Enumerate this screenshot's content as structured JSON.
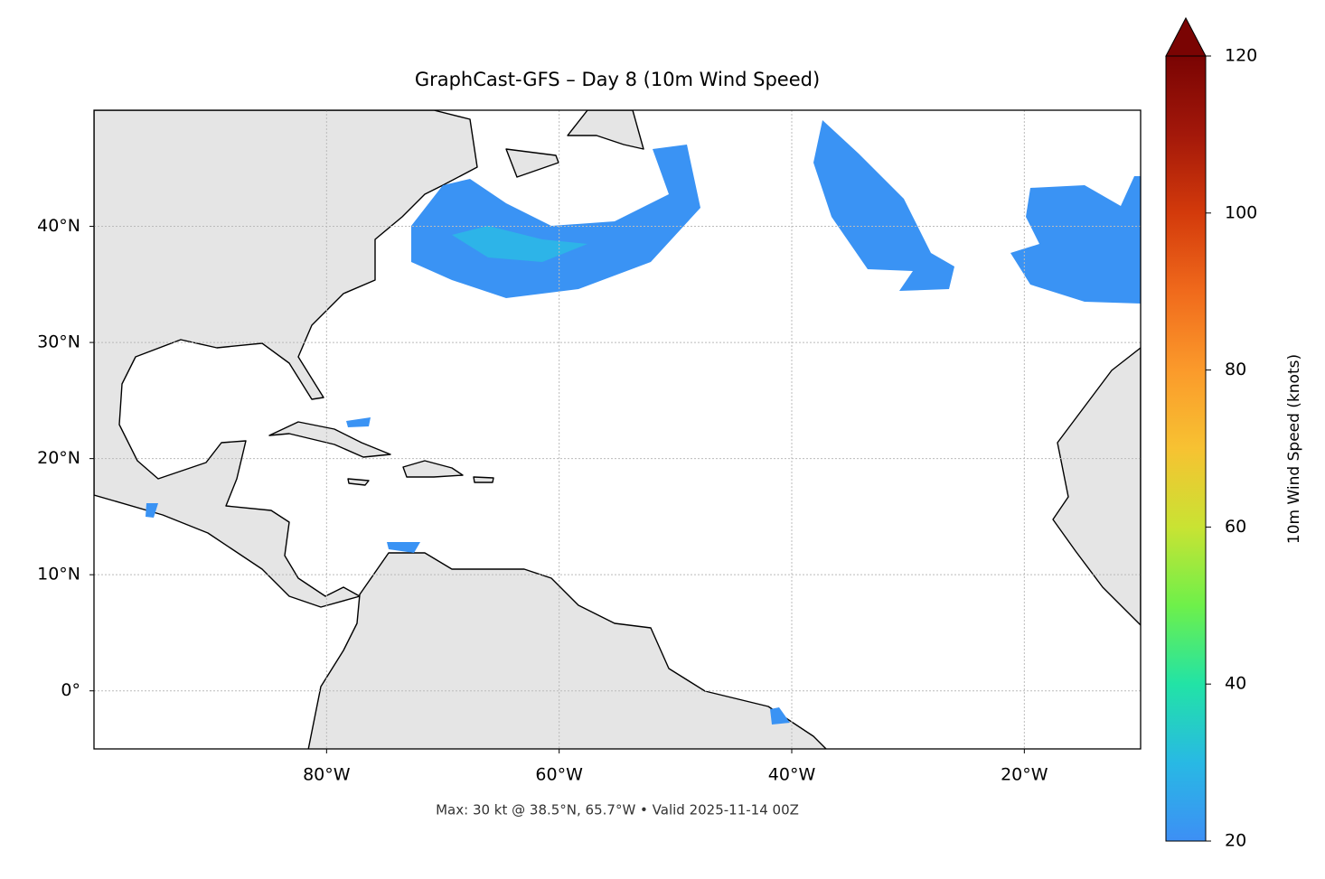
{
  "chart_data": {
    "type": "map",
    "title": "GraphCast-GFS – Day 8 (10m Wind Speed)",
    "note": "Max: 30 kt @ 38.5°N, 65.7°W • Valid 2025-11-14 00Z",
    "xlim": [
      -100,
      -10
    ],
    "ylim": [
      -5,
      50
    ],
    "xticks": [
      {
        "value": -80,
        "label": "80°W"
      },
      {
        "value": -60,
        "label": "60°W"
      },
      {
        "value": -40,
        "label": "40°W"
      },
      {
        "value": -20,
        "label": "20°W"
      }
    ],
    "yticks": [
      {
        "value": 0,
        "label": "0°"
      },
      {
        "value": 10,
        "label": "10°N"
      },
      {
        "value": 20,
        "label": "20°N"
      },
      {
        "value": 30,
        "label": "30°N"
      },
      {
        "value": 40,
        "label": "40°N"
      }
    ],
    "grid": true,
    "colorbar": {
      "label": "10m Wind Speed (knots)",
      "lim": [
        20,
        120
      ],
      "ticks": [
        20,
        40,
        60,
        80,
        100,
        120
      ],
      "colors": [
        "#3d8ff5",
        "#28b9e4",
        "#22e3a6",
        "#6ef04a",
        "#c9e333",
        "#f7c232",
        "#fb9a2b",
        "#f06a1c",
        "#d33a0b",
        "#a3180a",
        "#7a0403"
      ]
    }
  }
}
